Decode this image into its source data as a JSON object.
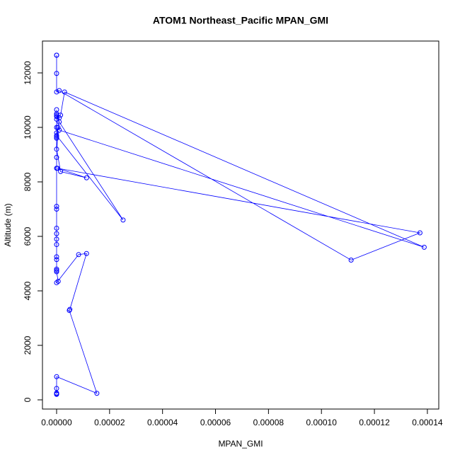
{
  "chart_data": {
    "type": "line",
    "title": "ATOM1 Northeast_Pacific MPAN_GMI",
    "x_label": "MPAN_GMI",
    "y_label": "Altitude (m)",
    "color": "#0000ff",
    "x": [
      0,
      0,
      0,
      0,
      1e-06,
      0.0001112,
      0.0001372,
      3e-07,
      1.13e-05,
      1.5e-06,
      0,
      0,
      2.51e-05,
      1e-06,
      0,
      1.5e-06,
      3e-06,
      0.0001388,
      1e-06,
      5e-07,
      0,
      0,
      0,
      0,
      0,
      0,
      0,
      0,
      1e-06,
      5e-07,
      0,
      0,
      0,
      0,
      0,
      0,
      0,
      0,
      0,
      0,
      0,
      0,
      0,
      6e-07,
      0,
      8.3e-06,
      1.13e-05,
      5e-06,
      4.8e-06,
      1.52e-05,
      0,
      0,
      0,
      0,
      0
    ],
    "values": [
      12650,
      12650,
      11980,
      11300,
      11350,
      5130,
      6130,
      8500,
      8150,
      8380,
      9200,
      9700,
      6600,
      10200,
      10400,
      10450,
      11300,
      5600,
      9900,
      10000,
      9600,
      9650,
      9800,
      10000,
      10300,
      10500,
      10650,
      10450,
      10350,
      10000,
      8900,
      8500,
      7100,
      7000,
      6300,
      6100,
      5900,
      5700,
      5250,
      5150,
      4800,
      4750,
      4700,
      4350,
      4300,
      5330,
      5370,
      3320,
      3280,
      240,
      850,
      420,
      250,
      200,
      220
    ],
    "xlim": [
      -5.34e-06,
      0.0001443
    ],
    "ylim": [
      -338,
      13169
    ],
    "xticks": [
      {
        "value": 0,
        "label": "0.00000"
      },
      {
        "value": 2e-05,
        "label": "0.00002"
      },
      {
        "value": 4e-05,
        "label": "0.00004"
      },
      {
        "value": 6e-05,
        "label": "0.00006"
      },
      {
        "value": 8e-05,
        "label": "0.00008"
      },
      {
        "value": 0.0001,
        "label": "0.00010"
      },
      {
        "value": 0.00012,
        "label": "0.00012"
      },
      {
        "value": 0.00014,
        "label": "0.00014"
      }
    ],
    "yticks": [
      0,
      2000,
      4000,
      6000,
      8000,
      10000,
      12000
    ]
  }
}
